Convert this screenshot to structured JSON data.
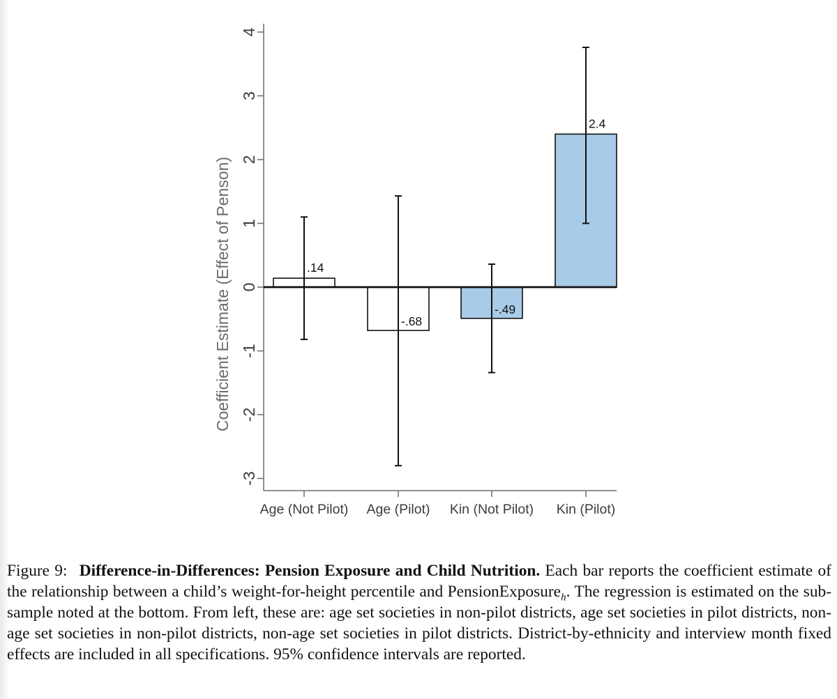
{
  "chart_data": {
    "type": "bar",
    "ylabel": "Coefficient Estimate (Effect of Penson)",
    "xlabel": "",
    "ylim": [
      -3.3,
      4.3
    ],
    "yticks": [
      -3,
      -2,
      -1,
      0,
      1,
      2,
      3,
      4
    ],
    "grid": false,
    "categories": [
      "Age (Not Pilot)",
      "Age (Pilot)",
      "Kin (Not Pilot)",
      "Kin (Pilot)"
    ],
    "values": [
      0.14,
      -0.68,
      -0.49,
      2.4
    ],
    "value_labels": [
      ".14",
      "-.68",
      "-.49",
      "2.4"
    ],
    "ci_low": [
      -0.82,
      -2.8,
      -1.34,
      1.0
    ],
    "ci_high": [
      1.1,
      1.43,
      0.36,
      3.76
    ],
    "bar_colors": [
      "#ffffff",
      "#ffffff",
      "#a8cbe8",
      "#a8cbe8"
    ]
  },
  "caption": {
    "figure_number": "Figure 9:",
    "bold_title": "Difference-in-Differences: Pension Exposure and Child Nutrition.",
    "text_part1": " Each bar reports the coefficient estimate of the relationship between a child’s weight-for-height percentile and PensionExposure",
    "subscript": "h",
    "text_part2": ". The regression is estimated on the sub-sample noted at the bottom. From left, these are: age set societies in non-pilot districts, age set societies in pilot districts, non-age set societies in non-pilot districts, non-age set societies in pilot districts. District-by-ethnicity and interview month fixed effects are included in all specifications. 95% confidence intervals are reported."
  }
}
